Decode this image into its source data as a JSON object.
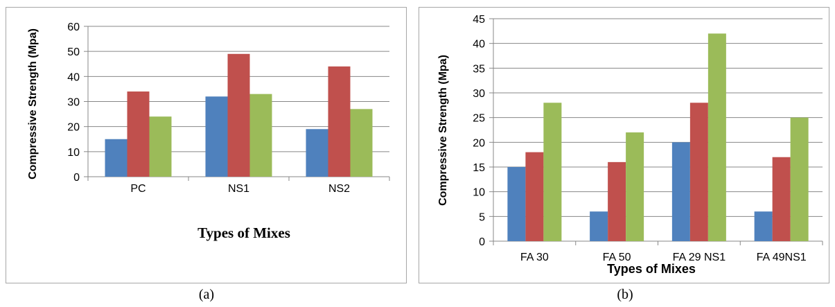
{
  "colors": {
    "series1": "#4f81bd",
    "series2": "#c0504d",
    "series3": "#9bbb59"
  },
  "chart_data": [
    {
      "type": "bar",
      "caption": "(a)",
      "categories": [
        "PC",
        "NS1",
        "NS2"
      ],
      "series": [
        {
          "values": [
            15,
            32,
            19
          ]
        },
        {
          "values": [
            34,
            49,
            44
          ]
        },
        {
          "values": [
            24,
            33,
            27
          ]
        }
      ],
      "ylim": [
        0,
        60
      ],
      "yticks": [
        0,
        10,
        20,
        30,
        40,
        50,
        60
      ],
      "ylabel": "Compressive Strength (Mpa)",
      "xlabel": "Types of Mixes",
      "grid": true
    },
    {
      "type": "bar",
      "caption": "(b)",
      "categories": [
        "FA 30",
        "FA 50",
        "FA 29 NS1",
        "FA 49NS1"
      ],
      "series": [
        {
          "values": [
            15,
            6,
            20,
            6
          ]
        },
        {
          "values": [
            18,
            16,
            28,
            17
          ]
        },
        {
          "values": [
            28,
            22,
            42,
            25
          ]
        }
      ],
      "ylim": [
        0,
        45
      ],
      "yticks": [
        0,
        5,
        10,
        15,
        20,
        25,
        30,
        35,
        40,
        45
      ],
      "ylabel": "Compressive Strength (Mpa)",
      "xlabel": "Types of Mixes",
      "grid": true
    }
  ]
}
